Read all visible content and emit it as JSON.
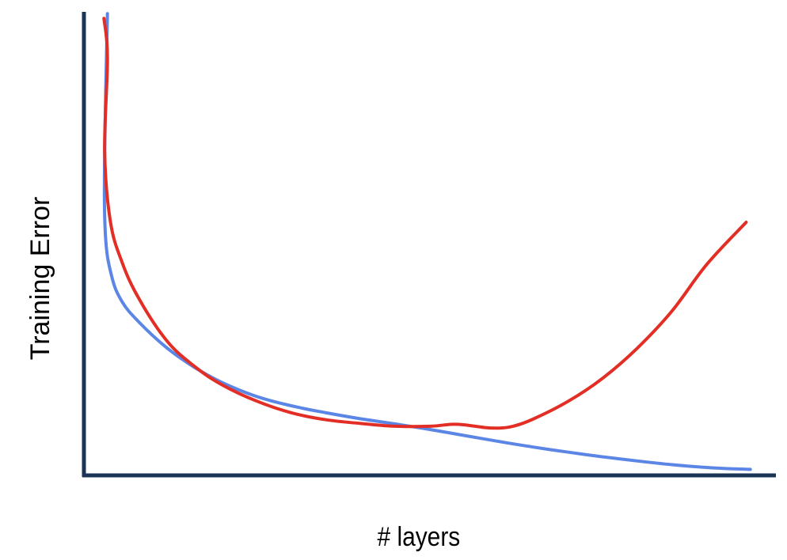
{
  "chart_data": {
    "type": "line",
    "title": "",
    "xlabel": "# layers",
    "ylabel": "Training Error",
    "xlim": [
      0,
      100
    ],
    "ylim": [
      0,
      100
    ],
    "ticks_shown": false,
    "grid": false,
    "legend": "none",
    "series": [
      {
        "color": "#5b86e5",
        "x": [
          3.4,
          3.0,
          3.1,
          4.0,
          5.5,
          8,
          12,
          16,
          20,
          25,
          30,
          35,
          40,
          45,
          50,
          55,
          60,
          65,
          70,
          75,
          80,
          85,
          90,
          94,
          96.3
        ],
        "y": [
          99.6,
          70.0,
          52.0,
          43.0,
          37.5,
          33.0,
          27.5,
          23.3,
          20.0,
          17.0,
          15.0,
          13.5,
          12.2,
          11.1,
          9.9,
          8.6,
          7.3,
          6.1,
          5.0,
          4.0,
          3.1,
          2.3,
          1.7,
          1.4,
          1.3
        ]
      },
      {
        "color": "#e32e25",
        "x": [
          2.9,
          3.4,
          3.0,
          3.8,
          5.5,
          8,
          12,
          16,
          20,
          25,
          30,
          35,
          40,
          45,
          50,
          53,
          55,
          58,
          60,
          62,
          65,
          70,
          75,
          80,
          85,
          90,
          95.7
        ],
        "y": [
          98.6,
          90.0,
          70.0,
          55.0,
          46.0,
          38.0,
          29.0,
          23.5,
          19.5,
          16.0,
          13.5,
          12.0,
          11.2,
          10.6,
          10.6,
          11.0,
          10.9,
          10.3,
          10.2,
          10.6,
          12.2,
          16.0,
          21.0,
          27.5,
          35.5,
          45.5,
          54.6
        ]
      }
    ]
  }
}
